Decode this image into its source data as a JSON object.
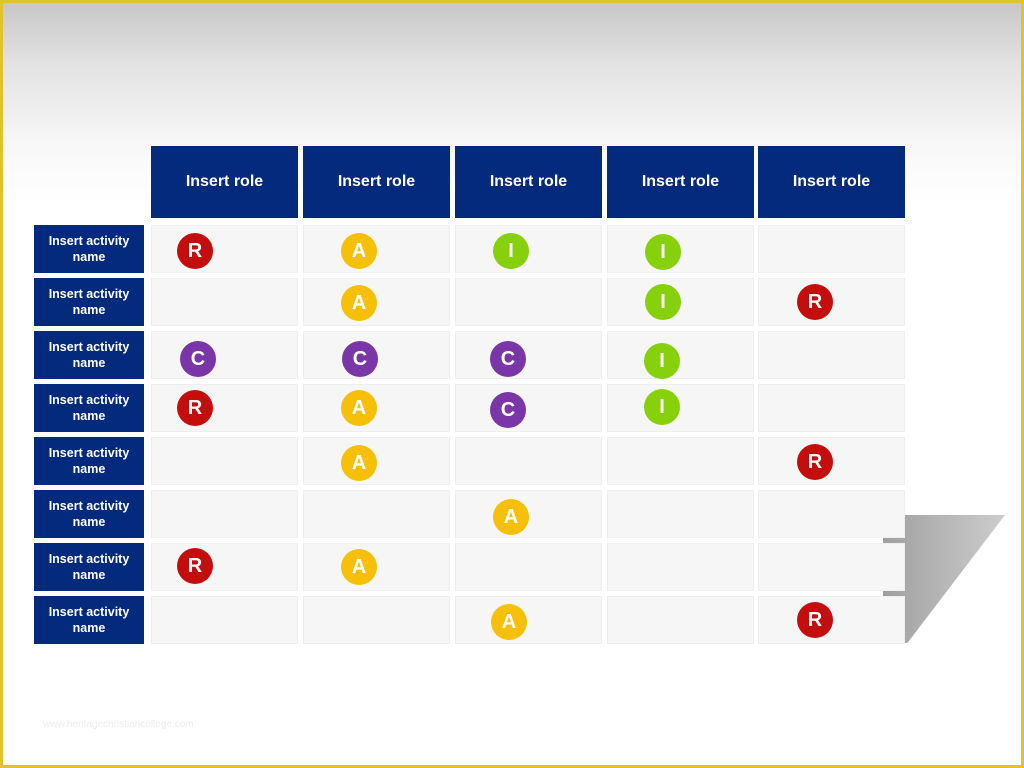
{
  "roles": [
    "Insert role",
    "Insert role",
    "Insert role",
    "Insert role",
    "Insert role"
  ],
  "activities": [
    {
      "label": "Insert activity name",
      "cells": [
        "R",
        "A",
        "I",
        "I",
        ""
      ]
    },
    {
      "label": "Insert activity name",
      "cells": [
        "",
        "A",
        "",
        "I",
        "R"
      ]
    },
    {
      "label": "Insert activity name",
      "cells": [
        "C",
        "C",
        "C",
        "I",
        ""
      ]
    },
    {
      "label": "Insert activity name",
      "cells": [
        "R",
        "A",
        "C",
        "I",
        ""
      ]
    },
    {
      "label": "Insert activity name",
      "cells": [
        "",
        "A",
        "",
        "",
        "R"
      ]
    },
    {
      "label": "Insert activity name",
      "cells": [
        "",
        "",
        "A",
        "",
        ""
      ]
    },
    {
      "label": "Insert activity name",
      "cells": [
        "R",
        "A",
        "",
        "",
        ""
      ]
    },
    {
      "label": "Insert activity name",
      "cells": [
        "",
        "",
        "A",
        "",
        "R"
      ]
    }
  ],
  "badge_colors": {
    "R": "#c40e0e",
    "A": "#f7c008",
    "C": "#7a35a6",
    "I": "#86d10b"
  },
  "header_color": "#042a7e",
  "frame_color": "#e0c22b",
  "watermark": "www.heritagechristiancollege.com"
}
